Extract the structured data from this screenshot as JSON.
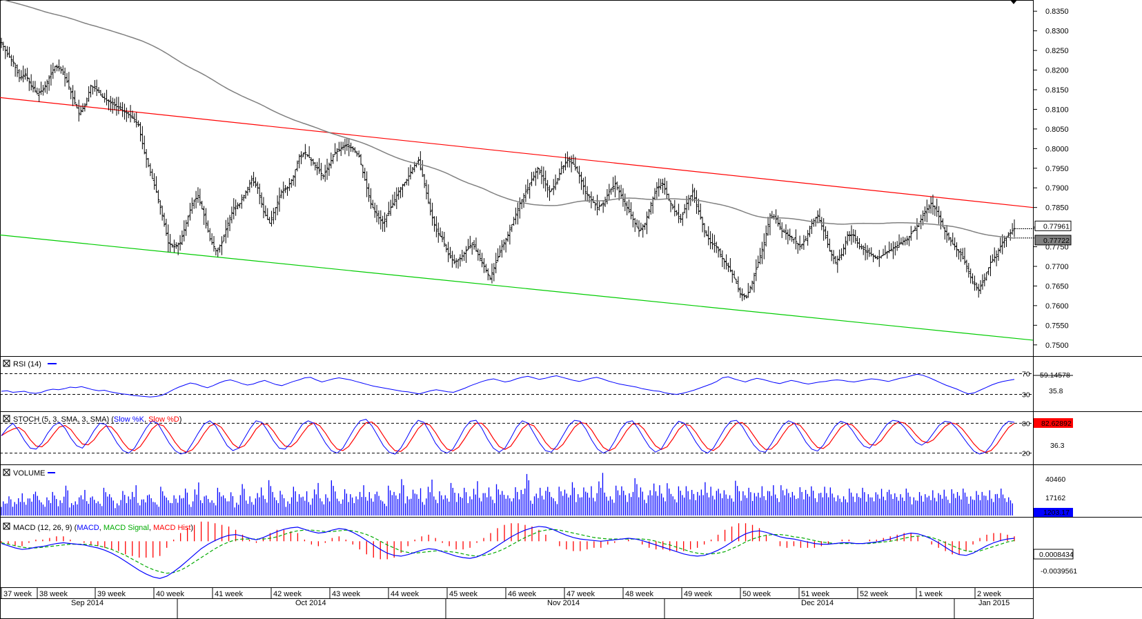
{
  "chart_data": {
    "type": "candlestick",
    "main": {
      "ylim": [
        0.7475,
        0.8375
      ],
      "y_ticks": [
        "0.8350",
        "0.8300",
        "0.8250",
        "0.8200",
        "0.8150",
        "0.8100",
        "0.8050",
        "0.8000",
        "0.7950",
        "0.7900",
        "0.7850",
        "0.7800",
        "0.7750",
        "0.7700",
        "0.7650",
        "0.7600",
        "0.7550",
        "0.7500"
      ],
      "price_tags": [
        "0.77961",
        "0.77722"
      ],
      "resistance_line": {
        "start": 0.813,
        "end": 0.785,
        "color": "#ff0000"
      },
      "support_line": {
        "start": 0.778,
        "end": 0.7512,
        "color": "#00cc00"
      },
      "close_path": [
        0.827,
        0.824,
        0.822,
        0.818,
        0.819,
        0.816,
        0.814,
        0.815,
        0.818,
        0.821,
        0.82,
        0.817,
        0.813,
        0.809,
        0.811,
        0.816,
        0.815,
        0.813,
        0.812,
        0.811,
        0.81,
        0.809,
        0.808,
        0.806,
        0.799,
        0.794,
        0.789,
        0.783,
        0.776,
        0.775,
        0.776,
        0.781,
        0.786,
        0.788,
        0.783,
        0.777,
        0.774,
        0.776,
        0.781,
        0.785,
        0.786,
        0.789,
        0.792,
        0.79,
        0.784,
        0.781,
        0.785,
        0.789,
        0.79,
        0.793,
        0.798,
        0.799,
        0.797,
        0.795,
        0.793,
        0.796,
        0.799,
        0.8,
        0.801,
        0.8,
        0.798,
        0.792,
        0.786,
        0.783,
        0.781,
        0.784,
        0.787,
        0.79,
        0.792,
        0.795,
        0.797,
        0.791,
        0.784,
        0.779,
        0.777,
        0.773,
        0.771,
        0.772,
        0.774,
        0.776,
        0.773,
        0.77,
        0.767,
        0.771,
        0.775,
        0.778,
        0.782,
        0.786,
        0.789,
        0.792,
        0.795,
        0.792,
        0.789,
        0.791,
        0.795,
        0.797,
        0.796,
        0.793,
        0.789,
        0.787,
        0.785,
        0.786,
        0.789,
        0.791,
        0.788,
        0.785,
        0.782,
        0.779,
        0.781,
        0.786,
        0.79,
        0.791,
        0.787,
        0.784,
        0.782,
        0.786,
        0.789,
        0.784,
        0.779,
        0.776,
        0.775,
        0.772,
        0.77,
        0.767,
        0.763,
        0.762,
        0.766,
        0.771,
        0.776,
        0.783,
        0.782,
        0.779,
        0.778,
        0.777,
        0.775,
        0.777,
        0.781,
        0.783,
        0.779,
        0.774,
        0.771,
        0.773,
        0.778,
        0.778,
        0.775,
        0.774,
        0.773,
        0.772,
        0.773,
        0.774,
        0.775,
        0.776,
        0.777,
        0.779,
        0.781,
        0.784,
        0.786,
        0.784,
        0.78,
        0.777,
        0.775,
        0.773,
        0.77,
        0.766,
        0.764,
        0.767,
        0.771,
        0.773,
        0.776,
        0.778,
        0.77961
      ]
    },
    "rsi": {
      "label": "RSI (14)",
      "levels": [
        "70",
        "30"
      ],
      "extra_tick": "35.8",
      "value": "59.14578",
      "ylim": [
        0,
        100
      ],
      "values": [
        36,
        37,
        34,
        35,
        36,
        33,
        32,
        34,
        38,
        40,
        39,
        41,
        44,
        43,
        45,
        42,
        39,
        37,
        38,
        35,
        33,
        31,
        30,
        28,
        27,
        26,
        25,
        26,
        28,
        33,
        39,
        44,
        48,
        52,
        50,
        46,
        43,
        47,
        52,
        56,
        58,
        55,
        51,
        48,
        50,
        54,
        57,
        53,
        49,
        47,
        51,
        55,
        58,
        62,
        63,
        58,
        54,
        57,
        60,
        62,
        60,
        58,
        55,
        52,
        49,
        46,
        44,
        42,
        40,
        38,
        36,
        35,
        33,
        31,
        34,
        37,
        39,
        37,
        35,
        34,
        38,
        42,
        47,
        51,
        55,
        58,
        60,
        57,
        54,
        56,
        60,
        63,
        65,
        62,
        59,
        61,
        64,
        66,
        63,
        60,
        57,
        55,
        58,
        61,
        63,
        60,
        56,
        53,
        50,
        48,
        46,
        44,
        41,
        39,
        37,
        36,
        33,
        31,
        30,
        32,
        35,
        38,
        42,
        46,
        50,
        55,
        62,
        64,
        60,
        57,
        54,
        58,
        61,
        59,
        56,
        53,
        51,
        54,
        57,
        55,
        52,
        50,
        52,
        54,
        55,
        57,
        58,
        57,
        55,
        54,
        56,
        58,
        60,
        59,
        57,
        55,
        58,
        61,
        63,
        66,
        69,
        67,
        63,
        58,
        53,
        48,
        44,
        40,
        35,
        31,
        33,
        38,
        43,
        48,
        52,
        55,
        57,
        59
      ]
    },
    "stoch": {
      "label": "STOCH (5, 3, SMA, 3, SMA)",
      "k_name": "Slow %K",
      "d_name": "Slow %D",
      "levels": [
        "80",
        "20"
      ],
      "extra_tick": "36.3",
      "value": "82.62892",
      "ylim": [
        0,
        100
      ],
      "k": [
        55,
        70,
        80,
        65,
        45,
        30,
        28,
        40,
        60,
        75,
        82,
        70,
        50,
        35,
        30,
        45,
        65,
        80,
        78,
        60,
        40,
        25,
        20,
        30,
        50,
        70,
        85,
        80,
        60,
        40,
        25,
        18,
        22,
        40,
        60,
        78,
        85,
        75,
        55,
        35,
        25,
        30,
        50,
        70,
        85,
        82,
        65,
        45,
        30,
        28,
        40,
        60,
        78,
        85,
        80,
        60,
        40,
        25,
        20,
        30,
        50,
        70,
        85,
        88,
        75,
        55,
        35,
        22,
        18,
        30,
        50,
        72,
        86,
        82,
        62,
        40,
        25,
        20,
        28,
        48,
        70,
        84,
        86,
        70,
        48,
        30,
        22,
        30,
        50,
        72,
        85,
        80,
        60,
        40,
        25,
        22,
        35,
        55,
        75,
        86,
        84,
        68,
        46,
        28,
        20,
        26,
        45,
        68,
        82,
        85,
        70,
        50,
        32,
        22,
        28,
        48,
        70,
        84,
        80,
        62,
        42,
        26,
        20,
        30,
        50,
        70,
        84,
        86,
        74,
        54,
        36,
        24,
        22,
        38,
        58,
        76,
        85,
        80,
        62,
        42,
        28,
        24,
        36,
        56,
        74,
        84,
        80,
        66,
        48,
        34,
        30,
        44,
        62,
        78,
        86,
        84,
        72,
        56,
        42,
        36,
        44,
        60,
        76,
        84,
        82,
        70,
        54,
        38,
        24,
        18,
        22,
        36,
        56,
        74,
        84,
        82
      ]
    },
    "volume": {
      "label": "VOLUME",
      "ticks": [
        "40460",
        "17162"
      ],
      "value": "1203.17",
      "values": [
        14,
        18,
        12,
        22,
        16,
        19,
        25,
        13,
        17,
        21,
        15,
        28,
        11,
        18,
        24,
        16,
        20,
        14,
        26,
        19,
        12,
        23,
        17,
        30,
        15,
        18,
        22,
        13,
        27,
        16,
        20,
        19,
        24,
        14,
        31,
        17,
        21,
        15,
        26,
        18,
        23,
        12,
        28,
        19,
        16,
        25,
        21,
        35,
        17,
        22,
        14,
        27,
        19,
        24,
        16,
        29,
        18,
        21,
        33,
        15,
        26,
        20,
        17,
        30,
        22,
        19,
        25,
        14,
        28,
        21,
        36,
        18,
        23,
        27,
        16,
        32,
        20,
        24,
        19,
        29,
        22,
        26,
        17,
        34,
        21,
        25,
        20,
        31,
        23,
        18,
        28,
        24,
        37,
        19,
        26,
        22,
        30,
        17,
        27,
        23,
        33,
        20,
        25,
        29,
        21,
        38,
        24,
        19,
        28,
        26,
        22,
        35,
        25,
        20,
        30,
        27,
        23,
        32,
        18,
        26,
        29,
        24,
        21,
        33,
        27,
        22,
        28,
        25,
        19,
        31,
        24,
        26,
        20,
        29,
        23,
        27,
        22,
        30,
        25,
        21,
        28,
        24,
        26,
        22,
        27,
        25,
        23,
        20,
        18,
        24,
        22,
        26,
        19,
        23,
        25,
        21,
        27,
        22,
        20,
        24,
        18,
        22,
        19,
        25,
        21,
        23,
        20,
        26,
        22,
        24,
        19,
        23,
        21,
        25,
        20,
        24,
        22,
        18
      ]
    },
    "macd": {
      "label": "MACD (12, 26, 9)",
      "macd_name": "MACD",
      "signal_name": "MACD Signal",
      "hist_name": "MACD Hist",
      "value": "0.0008434",
      "extra_tick": "-0.0039561",
      "macd": [
        -0.3,
        -0.6,
        -0.9,
        -1.1,
        -1.0,
        -0.8,
        -0.7,
        -0.5,
        -0.3,
        -0.2,
        -0.3,
        -0.4,
        -0.5,
        -0.7,
        -0.9,
        -1.2,
        -1.6,
        -2.1,
        -2.7,
        -3.3,
        -3.9,
        -4.4,
        -4.8,
        -5.0,
        -4.7,
        -4.1,
        -3.4,
        -2.6,
        -1.8,
        -1.0,
        -0.4,
        0.1,
        0.5,
        0.8,
        0.9,
        0.7,
        0.4,
        0.2,
        0.5,
        0.9,
        1.3,
        1.6,
        1.8,
        1.9,
        1.6,
        1.3,
        1.1,
        1.2,
        1.5,
        1.7,
        1.6,
        1.2,
        0.7,
        0.1,
        -0.5,
        -1.1,
        -1.6,
        -1.9,
        -2.0,
        -1.8,
        -1.5,
        -1.2,
        -1.0,
        -1.1,
        -1.4,
        -1.7,
        -2.0,
        -2.2,
        -2.3,
        -2.1,
        -1.7,
        -1.2,
        -0.6,
        0.0,
        0.6,
        1.1,
        1.5,
        1.8,
        2.0,
        1.9,
        1.6,
        1.2,
        0.8,
        0.5,
        0.3,
        0.2,
        0.1,
        0.0,
        0.1,
        0.2,
        0.3,
        0.4,
        0.3,
        0.1,
        -0.2,
        -0.5,
        -0.8,
        -1.1,
        -1.4,
        -1.7,
        -1.9,
        -2.0,
        -1.9,
        -1.6,
        -1.2,
        -0.7,
        -0.1,
        0.5,
        1.0,
        1.3,
        1.4,
        1.2,
        0.9,
        0.6,
        0.4,
        0.3,
        0.1,
        -0.1,
        -0.3,
        -0.4,
        -0.4,
        -0.3,
        -0.2,
        -0.2,
        -0.3,
        -0.3,
        -0.2,
        -0.1,
        0.1,
        0.3,
        0.6,
        0.9,
        1.1,
        1.0,
        0.7,
        0.3,
        -0.2,
        -0.8,
        -1.4,
        -1.8,
        -1.9,
        -1.6,
        -1.1,
        -0.6,
        -0.2,
        0.1,
        0.3,
        0.4
      ],
      "signal": [
        -0.2,
        -0.4,
        -0.6,
        -0.8,
        -0.9,
        -0.9,
        -0.8,
        -0.7,
        -0.6,
        -0.5,
        -0.4,
        -0.4,
        -0.4,
        -0.5,
        -0.6,
        -0.8,
        -1.1,
        -1.5,
        -1.9,
        -2.4,
        -2.9,
        -3.4,
        -3.8,
        -4.1,
        -4.3,
        -4.2,
        -3.9,
        -3.4,
        -2.8,
        -2.2,
        -1.6,
        -1.0,
        -0.5,
        -0.1,
        0.2,
        0.3,
        0.3,
        0.3,
        0.3,
        0.4,
        0.6,
        0.9,
        1.2,
        1.4,
        1.5,
        1.5,
        1.4,
        1.3,
        1.3,
        1.4,
        1.5,
        1.4,
        1.2,
        0.9,
        0.5,
        0.0,
        -0.5,
        -0.9,
        -1.3,
        -1.5,
        -1.6,
        -1.5,
        -1.4,
        -1.3,
        -1.3,
        -1.4,
        -1.5,
        -1.7,
        -1.9,
        -2.0,
        -1.9,
        -1.7,
        -1.4,
        -1.0,
        -0.5,
        0.0,
        0.5,
        0.9,
        1.3,
        1.5,
        1.6,
        1.5,
        1.3,
        1.1,
        0.9,
        0.7,
        0.5,
        0.4,
        0.3,
        0.3,
        0.3,
        0.3,
        0.3,
        0.3,
        0.2,
        0.0,
        -0.3,
        -0.5,
        -0.8,
        -1.1,
        -1.4,
        -1.6,
        -1.7,
        -1.7,
        -1.6,
        -1.4,
        -1.0,
        -0.6,
        -0.1,
        0.3,
        0.6,
        0.8,
        0.9,
        0.9,
        0.8,
        0.6,
        0.5,
        0.3,
        0.1,
        -0.1,
        -0.2,
        -0.3,
        -0.3,
        -0.3,
        -0.3,
        -0.3,
        -0.3,
        -0.2,
        -0.1,
        0.0,
        0.2,
        0.4,
        0.6,
        0.7,
        0.7,
        0.5,
        0.2,
        -0.2,
        -0.6,
        -1.0,
        -1.3,
        -1.4,
        -1.3,
        -1.0,
        -0.7,
        -0.4,
        -0.1,
        0.1
      ]
    },
    "x_axis": {
      "weeks": [
        "37 week",
        "38 week",
        "39 week",
        "40 week",
        "41 week",
        "42 week",
        "43 week",
        "44 week",
        "45 week",
        "46 week",
        "47 week",
        "48 week",
        "49 week",
        "50 week",
        "51 week",
        "52 week",
        "1 week",
        "2 week"
      ],
      "months": [
        "Sep 2014",
        "Oct 2014",
        "Nov 2014",
        "Dec 2014",
        "Jan 2015"
      ]
    }
  }
}
